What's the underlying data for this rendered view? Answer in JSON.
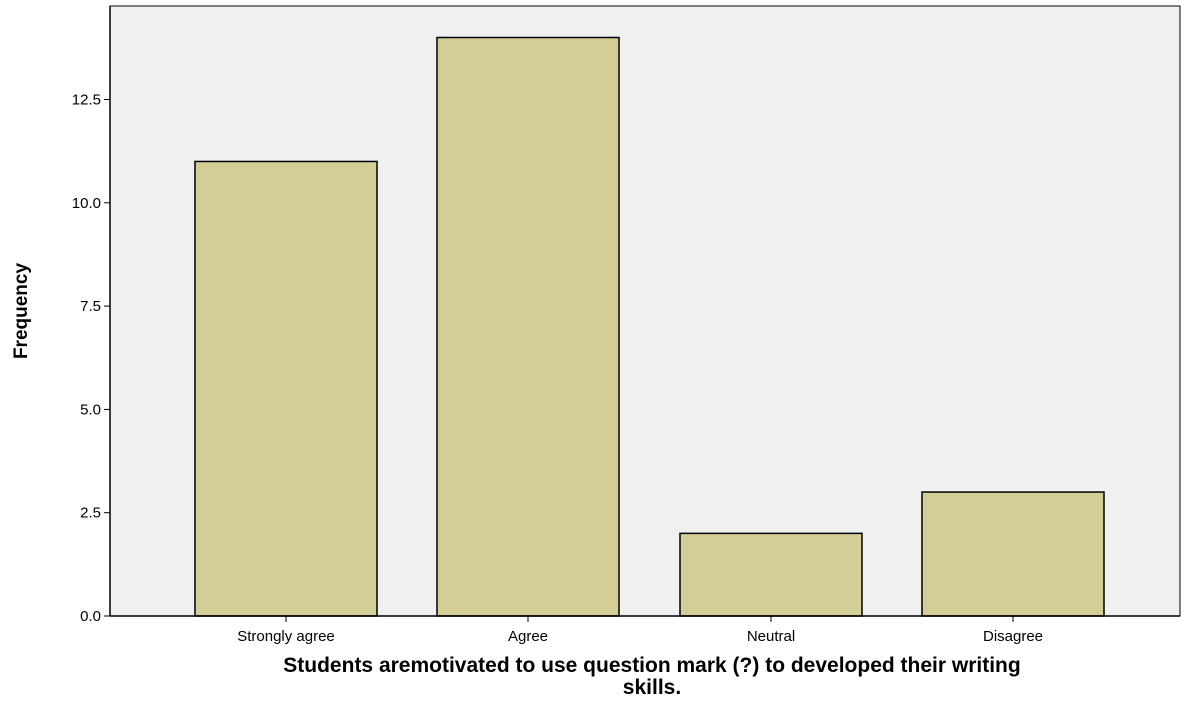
{
  "chart_data": {
    "type": "bar",
    "title": "",
    "xlabel": "Students aremotivated to use question mark (?) to developed their writing skills.",
    "ylabel": "Frequency",
    "categories": [
      "Strongly agree",
      "Agree",
      "Neutral",
      "Disagree"
    ],
    "values": [
      11,
      14,
      2,
      3
    ],
    "ylim": [
      0,
      14
    ],
    "yticks": [
      "0.0",
      "2.5",
      "5.0",
      "7.5",
      "10.0",
      "12.5"
    ],
    "grid": false,
    "legend": "none",
    "colors": {
      "bar_fill": "#d3cd96",
      "bar_stroke": "#000000",
      "plot_background": "#f0f0f0",
      "axis": "#000000"
    }
  }
}
